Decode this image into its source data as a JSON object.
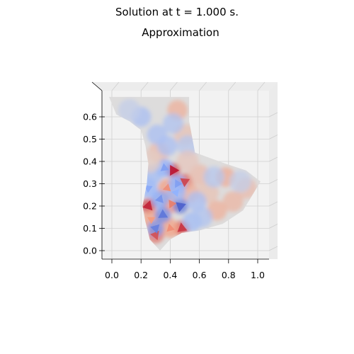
{
  "figure": {
    "suptitle": "Solution at t = 1.000 s.",
    "title": "Approximation"
  },
  "chart_data": {
    "type": "surface-3d",
    "title": "Approximation",
    "colormap": "coolwarm",
    "view": "top-down",
    "xlabel": "",
    "ylabel": "",
    "xlim": [
      -0.06,
      1.08
    ],
    "ylim": [
      -0.04,
      0.69
    ],
    "x_ticks": [
      "0.0",
      "0.2",
      "0.4",
      "0.6",
      "0.8",
      "1.0"
    ],
    "y_ticks": [
      "0.0",
      "0.1",
      "0.2",
      "0.3",
      "0.4",
      "0.5",
      "0.6"
    ],
    "domain_outline": [
      [
        -0.02,
        0.69
      ],
      [
        0.53,
        0.69
      ],
      [
        0.53,
        0.58
      ],
      [
        0.57,
        0.44
      ],
      [
        0.78,
        0.39
      ],
      [
        0.92,
        0.36
      ],
      [
        1.02,
        0.31
      ],
      [
        0.9,
        0.18
      ],
      [
        0.76,
        0.12
      ],
      [
        0.6,
        0.09
      ],
      [
        0.48,
        0.08
      ],
      [
        0.4,
        0.05
      ],
      [
        0.33,
        0.0
      ],
      [
        0.26,
        0.05
      ],
      [
        0.23,
        0.13
      ],
      [
        0.21,
        0.2
      ],
      [
        0.24,
        0.3
      ],
      [
        0.25,
        0.39
      ],
      [
        0.23,
        0.47
      ],
      [
        0.2,
        0.54
      ],
      [
        0.12,
        0.58
      ],
      [
        0.03,
        0.61
      ]
    ],
    "patches": [
      {
        "x": 0.42,
        "y": 0.36,
        "v": 0.95
      },
      {
        "x": 0.25,
        "y": 0.2,
        "v": 0.9
      },
      {
        "x": 0.5,
        "y": 0.31,
        "v": 0.8
      },
      {
        "x": 0.48,
        "y": 0.1,
        "v": 0.85
      },
      {
        "x": 0.3,
        "y": 0.07,
        "v": 0.75
      },
      {
        "x": 0.41,
        "y": 0.21,
        "v": 0.6
      },
      {
        "x": 0.38,
        "y": 0.28,
        "v": 0.55
      },
      {
        "x": 0.27,
        "y": 0.14,
        "v": 0.5
      },
      {
        "x": 0.4,
        "y": 0.1,
        "v": 0.55
      },
      {
        "x": 0.78,
        "y": 0.33,
        "v": 0.45
      },
      {
        "x": 0.72,
        "y": 0.18,
        "v": 0.4
      },
      {
        "x": 0.83,
        "y": 0.22,
        "v": 0.35
      },
      {
        "x": 0.45,
        "y": 0.63,
        "v": 0.4
      },
      {
        "x": 0.53,
        "y": 0.26,
        "v": 0.4
      },
      {
        "x": 0.6,
        "y": 0.34,
        "v": 0.3
      },
      {
        "x": 0.92,
        "y": 0.28,
        "v": 0.3
      },
      {
        "x": 0.66,
        "y": 0.26,
        "v": 0.25
      },
      {
        "x": 0.32,
        "y": 0.44,
        "v": 0.3
      },
      {
        "x": 0.5,
        "y": 0.52,
        "v": 0.25
      },
      {
        "x": 0.36,
        "y": 0.12,
        "v": 0.4
      },
      {
        "x": 0.47,
        "y": 0.2,
        "v": -0.9
      },
      {
        "x": 0.35,
        "y": 0.16,
        "v": -0.8
      },
      {
        "x": 0.3,
        "y": 0.1,
        "v": -0.75
      },
      {
        "x": 0.45,
        "y": 0.3,
        "v": -0.6
      },
      {
        "x": 0.33,
        "y": 0.23,
        "v": -0.65
      },
      {
        "x": 0.25,
        "y": 0.28,
        "v": -0.55
      },
      {
        "x": 0.36,
        "y": 0.37,
        "v": -0.6
      },
      {
        "x": 0.44,
        "y": 0.26,
        "v": -0.5
      },
      {
        "x": 0.55,
        "y": 0.13,
        "v": -0.45
      },
      {
        "x": 0.31,
        "y": 0.52,
        "v": -0.4
      },
      {
        "x": 0.38,
        "y": 0.47,
        "v": -0.4
      },
      {
        "x": 0.2,
        "y": 0.6,
        "v": -0.4
      },
      {
        "x": 0.58,
        "y": 0.22,
        "v": -0.4
      },
      {
        "x": 0.52,
        "y": 0.47,
        "v": -0.3
      },
      {
        "x": 0.7,
        "y": 0.33,
        "v": -0.3
      },
      {
        "x": 0.62,
        "y": 0.15,
        "v": -0.35
      },
      {
        "x": 0.42,
        "y": 0.57,
        "v": -0.35
      },
      {
        "x": 0.28,
        "y": 0.34,
        "v": -0.45
      },
      {
        "x": 0.12,
        "y": 0.63,
        "v": -0.2
      },
      {
        "x": 0.88,
        "y": 0.31,
        "v": -0.2
      },
      {
        "x": 0.52,
        "y": 0.4,
        "v": 0.2
      },
      {
        "x": 0.26,
        "y": 0.4,
        "v": 0.15
      }
    ]
  }
}
